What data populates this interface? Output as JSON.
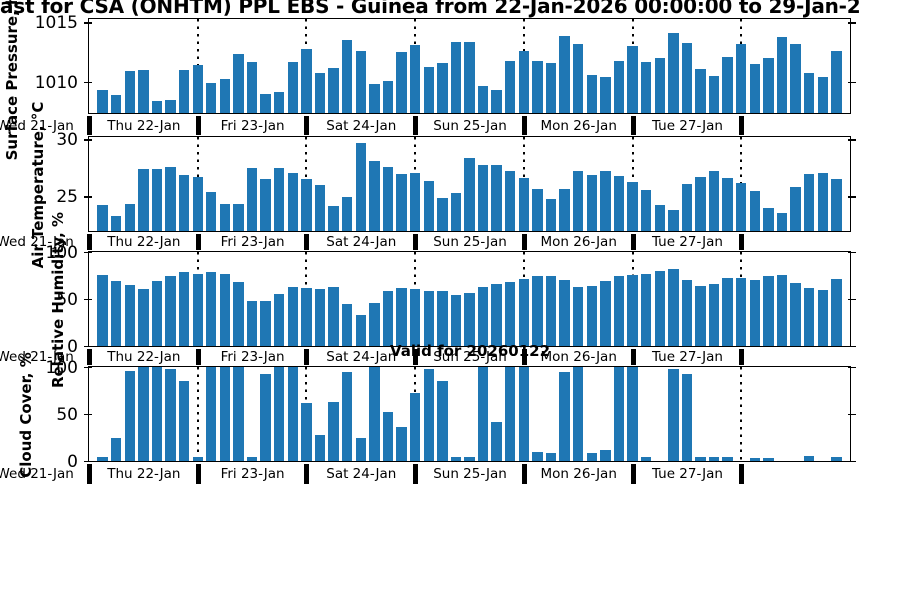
{
  "title": "ast for CSA (ONHTM) PPL EBS  - Guinea from 22-Jan-2026 00:00:00 to 29-Jan-2",
  "annotation": "Valid for 20260122",
  "chart_data": {
    "type": "bar",
    "bar_color": "#1f77b4",
    "interval_hours": 3,
    "bars_per_day": 8,
    "x_axis": {
      "pre_label": "Wed 21-Jan",
      "day_labels": [
        "Thu 22-Jan",
        "Fri 23-Jan",
        "Sat 24-Jan",
        "Sun 25-Jan",
        "Mon 26-Jan",
        "Tue 27-Jan"
      ],
      "total_day_segments": 7,
      "trailing_day_labeled": false,
      "grid": "dotted vertical lines at each midnight"
    },
    "panels": [
      {
        "id": "surface-pressure",
        "ylabel": "Surface Pressure, hPa",
        "yticks": [
          1015,
          1010
        ],
        "ylim": [
          1007.4,
          1015.3
        ],
        "values": [
          1009.3,
          1008.9,
          1010.9,
          1011.0,
          1008.4,
          1008.5,
          1011.0,
          1011.4,
          1009.9,
          1010.3,
          1012.4,
          1011.7,
          1009.0,
          1009.2,
          1011.7,
          1012.8,
          1010.8,
          1011.2,
          1013.5,
          1012.6,
          1009.8,
          1010.1,
          1012.5,
          1013.1,
          1011.3,
          1011.6,
          1013.4,
          1013.4,
          1009.7,
          1009.3,
          1011.8,
          1012.6,
          1011.8,
          1011.6,
          1013.9,
          1013.2,
          1010.6,
          1010.4,
          1011.8,
          1013.0,
          1011.7,
          1012.0,
          1014.1,
          1013.3,
          1011.1,
          1010.5,
          1012.1,
          1013.2,
          1011.5,
          1012.0,
          1013.8,
          1013.2,
          1010.8,
          1010.4,
          1012.6
        ]
      },
      {
        "id": "air-temperature",
        "ylabel": "Air Temperature, °C",
        "yticks": [
          30,
          25
        ],
        "ylim": [
          22,
          30.2
        ],
        "values": [
          24.3,
          23.3,
          24.4,
          27.4,
          27.4,
          27.6,
          26.9,
          26.7,
          25.4,
          24.4,
          24.4,
          27.5,
          26.5,
          27.5,
          27.1,
          26.5,
          26.0,
          24.2,
          25.0,
          29.7,
          28.1,
          27.6,
          27.0,
          27.1,
          26.4,
          24.9,
          25.3,
          28.4,
          27.8,
          27.8,
          27.2,
          26.6,
          25.7,
          24.8,
          25.7,
          27.2,
          26.9,
          27.2,
          26.8,
          26.3,
          25.6,
          24.3,
          23.8,
          26.1,
          26.7,
          27.2,
          26.6,
          26.2,
          25.5,
          24.0,
          23.6,
          25.8,
          27.0,
          27.1,
          26.5
        ]
      },
      {
        "id": "relative-humidity",
        "ylabel": "Relative Humidity, %",
        "yticks": [
          100,
          50,
          0
        ],
        "ylim": [
          0,
          100
        ],
        "values": [
          76,
          69,
          65,
          61,
          69,
          74,
          79,
          77,
          79,
          77,
          68,
          48,
          48,
          55,
          63,
          62,
          61,
          63,
          45,
          33,
          46,
          58,
          62,
          61,
          59,
          58,
          54,
          56,
          63,
          66,
          68,
          71,
          75,
          75,
          70,
          63,
          64,
          69,
          75,
          76,
          77,
          80,
          82,
          70,
          64,
          66,
          72,
          72,
          70,
          74,
          76,
          67,
          62,
          60,
          71
        ]
      },
      {
        "id": "cloud-cover",
        "ylabel": "Cloud Cover, %",
        "yticks": [
          100,
          50,
          0
        ],
        "ylim": [
          0,
          100
        ],
        "values": [
          4,
          25,
          96,
          100,
          100,
          98,
          85,
          4,
          100,
          100,
          100,
          4,
          93,
          100,
          100,
          62,
          28,
          63,
          95,
          24,
          100,
          52,
          36,
          72,
          98,
          85,
          4,
          4,
          100,
          41,
          100,
          100,
          10,
          8,
          95,
          100,
          8,
          12,
          100,
          100,
          4,
          0,
          98,
          93,
          4,
          4,
          4,
          0,
          3,
          3,
          0,
          0,
          5,
          0,
          4
        ]
      }
    ]
  }
}
